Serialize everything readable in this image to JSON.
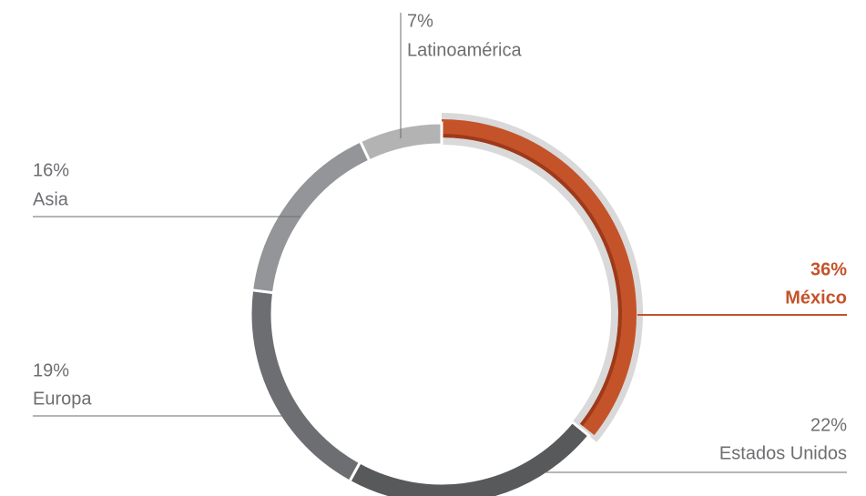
{
  "chart_data": {
    "type": "donut",
    "categories": [
      "México",
      "Estados Unidos",
      "Europa",
      "Asia",
      "Latinoamérica"
    ],
    "values": [
      36,
      22,
      19,
      16,
      7
    ],
    "value_labels": [
      "36%",
      "22%",
      "19%",
      "16%",
      "7%"
    ],
    "colors": [
      "#c4532a",
      "#58595b",
      "#6d6e71",
      "#939598",
      "#b3b3b3"
    ],
    "highlight": "México"
  }
}
